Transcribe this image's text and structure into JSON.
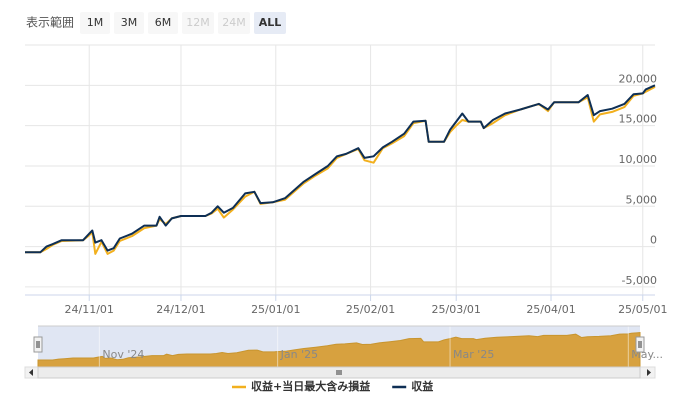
{
  "chart_data": {
    "type": "line",
    "range_selector": {
      "label": "表示範囲",
      "buttons": [
        {
          "label": "1M",
          "enabled": true,
          "active": false
        },
        {
          "label": "3M",
          "enabled": true,
          "active": false
        },
        {
          "label": "6M",
          "enabled": true,
          "active": false
        },
        {
          "label": "12M",
          "enabled": false,
          "active": false
        },
        {
          "label": "24M",
          "enabled": false,
          "active": false
        },
        {
          "label": "ALL",
          "enabled": true,
          "active": true
        }
      ]
    },
    "x": [
      "2024-10-11",
      "2024-10-16",
      "2024-10-18",
      "2024-10-20",
      "2024-10-23",
      "2024-10-30",
      "2024-11-01",
      "2024-11-02",
      "2024-11-03",
      "2024-11-05",
      "2024-11-07",
      "2024-11-09",
      "2024-11-11",
      "2024-11-15",
      "2024-11-19",
      "2024-11-23",
      "2024-11-24",
      "2024-11-26",
      "2024-11-28",
      "2024-12-01",
      "2024-12-09",
      "2024-12-11",
      "2024-12-13",
      "2024-12-15",
      "2024-12-18",
      "2024-12-22",
      "2024-12-25",
      "2024-12-27",
      "2024-12-31",
      "2025-01-04",
      "2025-01-07",
      "2025-01-10",
      "2025-01-14",
      "2025-01-18",
      "2025-01-21",
      "2025-01-24",
      "2025-01-28",
      "2025-01-30",
      "2025-02-02",
      "2025-02-05",
      "2025-02-08",
      "2025-02-12",
      "2025-02-15",
      "2025-02-19",
      "2025-02-20",
      "2025-02-25",
      "2025-02-27",
      "2025-03-01",
      "2025-03-03",
      "2025-03-05",
      "2025-03-09",
      "2025-03-10",
      "2025-03-13",
      "2025-03-17",
      "2025-03-22",
      "2025-03-28",
      "2025-03-31",
      "2025-04-02",
      "2025-04-10",
      "2025-04-13",
      "2025-04-15",
      "2025-04-17",
      "2025-04-21",
      "2025-04-25",
      "2025-04-28",
      "2025-05-01",
      "2025-05-02",
      "2025-05-05"
    ],
    "series": [
      {
        "name": "収益+当日最大含み損益",
        "color": "#f2b01e",
        "values": [
          -700,
          -700,
          -300,
          200,
          700,
          800,
          1400,
          1800,
          -900,
          600,
          -900,
          -500,
          700,
          1300,
          2300,
          2600,
          3400,
          2800,
          3500,
          3800,
          3800,
          4100,
          4700,
          3600,
          4600,
          6200,
          6800,
          5300,
          5500,
          5800,
          6800,
          7800,
          8800,
          9700,
          11000,
          11500,
          12100,
          10700,
          10400,
          12200,
          12800,
          13700,
          15300,
          15600,
          13000,
          13000,
          14200,
          15000,
          15700,
          15500,
          15500,
          14700,
          15300,
          16300,
          17000,
          17700,
          16800,
          17900,
          17900,
          18500,
          15500,
          16400,
          16700,
          17300,
          18700,
          19000,
          19200,
          19800
        ]
      },
      {
        "name": "収益",
        "color": "#0e2f55",
        "values": [
          -700,
          -700,
          0,
          300,
          800,
          800,
          1600,
          2000,
          500,
          800,
          -500,
          -200,
          1000,
          1600,
          2600,
          2600,
          3700,
          2600,
          3500,
          3800,
          3800,
          4200,
          5000,
          4200,
          4800,
          6600,
          6800,
          5400,
          5500,
          6000,
          7000,
          8000,
          9000,
          10000,
          11200,
          11500,
          12200,
          11000,
          11200,
          12300,
          13000,
          14000,
          15500,
          15600,
          13000,
          13000,
          14500,
          15500,
          16500,
          15500,
          15500,
          14700,
          15700,
          16500,
          17000,
          17700,
          17000,
          17900,
          17900,
          18800,
          16300,
          16800,
          17100,
          17700,
          18900,
          19000,
          19500,
          20000
        ]
      }
    ],
    "xlim": [
      "2024-10-11",
      "2025-05-05"
    ],
    "xticks": [
      {
        "value": "2024-11-01",
        "label": "24/11/01"
      },
      {
        "value": "2024-12-01",
        "label": "24/12/01"
      },
      {
        "value": "2025-01-01",
        "label": "25/01/01"
      },
      {
        "value": "2025-02-01",
        "label": "25/02/01"
      },
      {
        "value": "2025-03-01",
        "label": "25/03/01"
      },
      {
        "value": "2025-04-01",
        "label": "25/04/01"
      },
      {
        "value": "2025-05-01",
        "label": "25/05/01"
      }
    ],
    "ylim": [
      -6000,
      25000
    ],
    "yticks": [
      {
        "value": -5000,
        "label": "-5,000"
      },
      0,
      {
        "value": 5000,
        "label": "5,000"
      },
      {
        "value": 10000,
        "label": "10,000"
      },
      {
        "value": 15000,
        "label": "15,000"
      },
      {
        "value": 20000,
        "label": "20,000"
      }
    ],
    "grid": true,
    "navigator_ticks": [
      {
        "value": "2024-11-01",
        "label": "Nov '24"
      },
      {
        "value": "2025-01-01",
        "label": "Jan '25"
      },
      {
        "value": "2025-03-01",
        "label": "Mar '25"
      },
      {
        "value": "2025-05-01",
        "label": "May..."
      }
    ],
    "legend": "bottom"
  }
}
